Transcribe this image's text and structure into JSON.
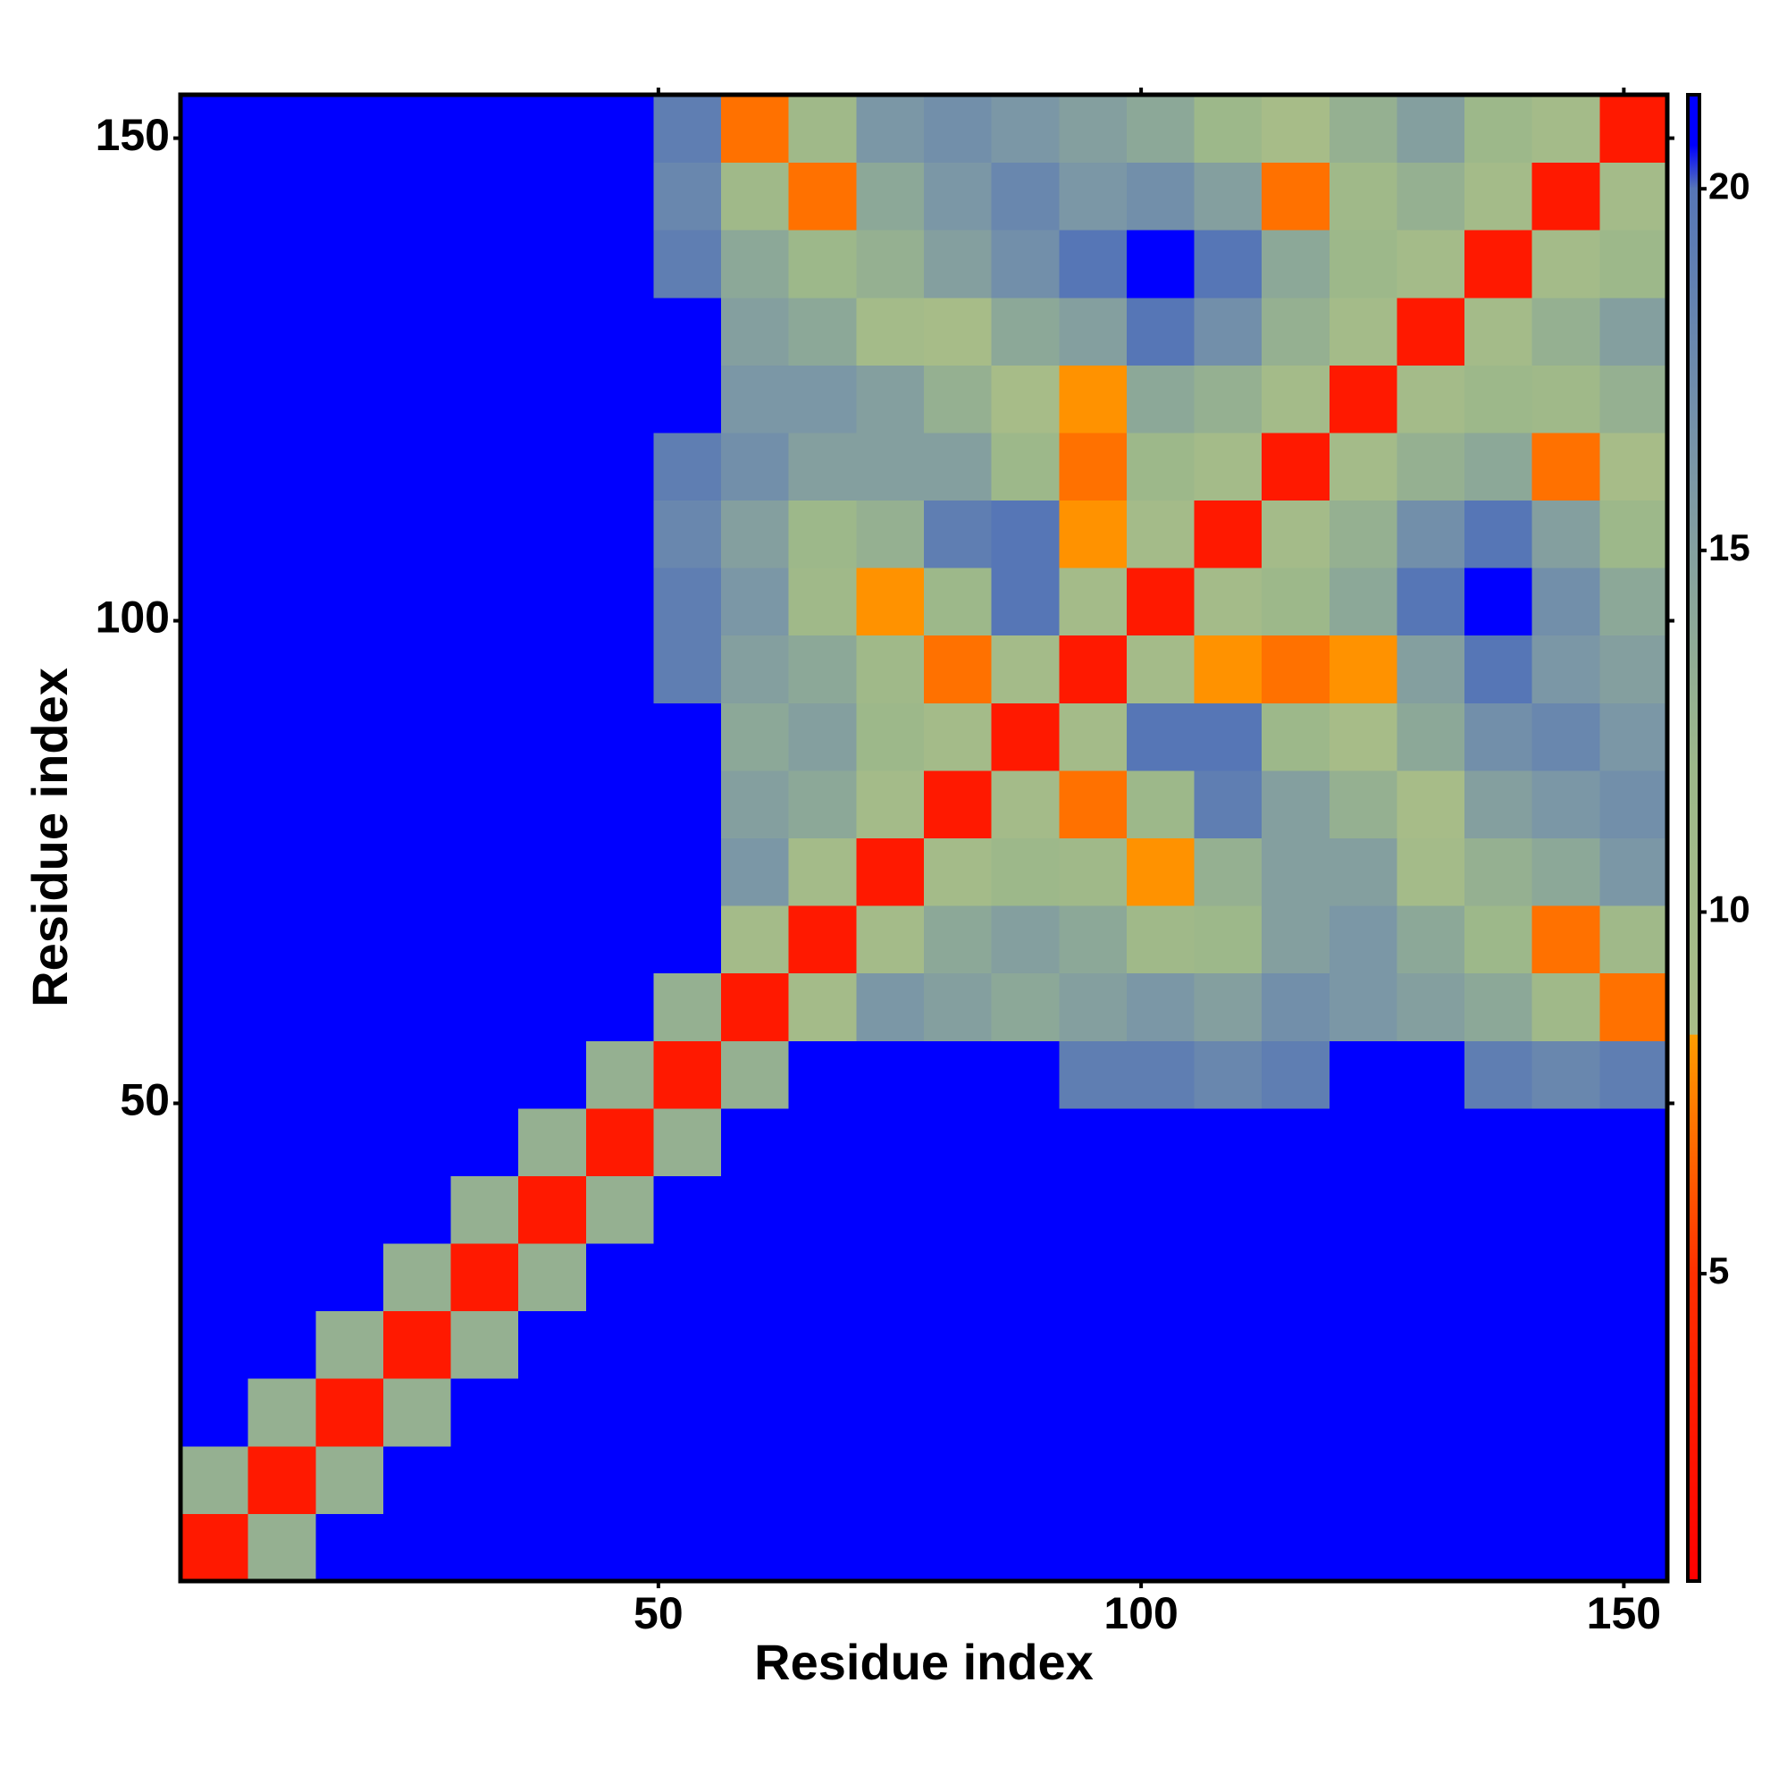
{
  "chart_data": {
    "type": "heatmap",
    "xlabel": "Residue index",
    "ylabel": "Residue index",
    "xlim": [
      0.5,
      154.5
    ],
    "ylim": [
      0.5,
      154.5
    ],
    "xticks": [
      50,
      100,
      150
    ],
    "yticks": [
      50,
      100,
      150
    ],
    "values": [
      [
        3,
        13,
        21,
        21,
        21,
        21,
        21,
        21,
        21,
        21,
        21,
        21,
        21,
        21,
        21,
        21,
        21,
        21,
        21,
        21,
        21,
        21
      ],
      [
        13,
        3,
        13,
        21,
        21,
        21,
        21,
        21,
        21,
        21,
        21,
        21,
        21,
        21,
        21,
        21,
        21,
        21,
        21,
        21,
        21,
        21
      ],
      [
        21,
        13,
        3,
        13,
        21,
        21,
        21,
        21,
        21,
        21,
        21,
        21,
        21,
        21,
        21,
        21,
        21,
        21,
        21,
        21,
        21,
        21
      ],
      [
        21,
        21,
        13,
        3,
        13,
        21,
        21,
        21,
        21,
        21,
        21,
        21,
        21,
        21,
        21,
        21,
        21,
        21,
        21,
        21,
        21,
        21
      ],
      [
        21,
        21,
        21,
        13,
        3,
        13,
        21,
        21,
        21,
        21,
        21,
        21,
        21,
        21,
        21,
        21,
        21,
        21,
        21,
        21,
        21,
        21
      ],
      [
        21,
        21,
        21,
        21,
        13,
        3,
        13,
        21,
        21,
        21,
        21,
        21,
        21,
        21,
        21,
        21,
        21,
        21,
        21,
        21,
        21,
        21
      ],
      [
        21,
        21,
        21,
        21,
        21,
        13,
        3,
        13,
        21,
        21,
        21,
        21,
        21,
        21,
        21,
        21,
        21,
        21,
        21,
        21,
        21,
        21
      ],
      [
        21,
        21,
        21,
        21,
        21,
        21,
        13,
        3,
        13,
        21,
        21,
        21,
        21,
        19,
        19,
        18,
        19,
        21,
        21,
        19,
        18,
        19
      ],
      [
        21,
        21,
        21,
        21,
        21,
        21,
        21,
        13,
        3,
        10,
        16,
        15,
        14,
        15,
        16,
        15,
        17,
        16,
        15,
        14,
        11,
        7
      ],
      [
        21,
        21,
        21,
        21,
        21,
        21,
        21,
        21,
        10,
        3,
        10,
        14,
        15,
        14,
        11,
        12,
        15,
        16,
        14,
        12,
        7,
        11
      ],
      [
        21,
        21,
        21,
        21,
        21,
        21,
        21,
        21,
        16,
        10,
        3,
        10,
        12,
        11,
        8,
        13,
        15,
        15,
        10,
        13,
        14,
        16
      ],
      [
        21,
        21,
        21,
        21,
        21,
        21,
        21,
        21,
        15,
        14,
        10,
        3,
        10,
        7,
        12,
        19,
        15,
        13,
        9,
        15,
        16,
        17
      ],
      [
        21,
        21,
        21,
        21,
        21,
        21,
        21,
        21,
        14,
        15,
        12,
        10,
        3,
        10,
        20,
        20,
        12,
        9,
        14,
        17,
        18,
        16
      ],
      [
        21,
        21,
        21,
        21,
        21,
        21,
        21,
        19,
        15,
        14,
        11,
        7,
        10,
        3,
        10,
        8,
        7,
        8,
        15,
        20,
        16,
        15
      ],
      [
        21,
        21,
        21,
        21,
        21,
        21,
        21,
        19,
        16,
        11,
        8,
        12,
        20,
        10,
        3,
        10,
        12,
        14,
        20,
        21,
        17,
        14
      ],
      [
        21,
        21,
        21,
        21,
        21,
        21,
        21,
        18,
        15,
        12,
        13,
        19,
        20,
        8,
        10,
        3,
        10,
        13,
        17,
        20,
        15,
        12
      ],
      [
        21,
        21,
        21,
        21,
        21,
        21,
        21,
        19,
        17,
        15,
        15,
        15,
        12,
        7,
        12,
        10,
        3,
        10,
        13,
        14,
        7,
        9
      ],
      [
        21,
        21,
        21,
        21,
        21,
        21,
        21,
        21,
        16,
        16,
        15,
        13,
        9,
        8,
        14,
        13,
        10,
        3,
        10,
        12,
        11,
        13
      ],
      [
        21,
        21,
        21,
        21,
        21,
        21,
        21,
        21,
        15,
        14,
        10,
        9,
        14,
        15,
        20,
        17,
        13,
        10,
        3,
        10,
        13,
        15
      ],
      [
        21,
        21,
        21,
        21,
        21,
        21,
        21,
        19,
        14,
        12,
        13,
        15,
        17,
        20,
        21,
        20,
        14,
        12,
        10,
        3,
        10,
        12
      ],
      [
        21,
        21,
        21,
        21,
        21,
        21,
        21,
        18,
        11,
        7,
        14,
        16,
        18,
        16,
        17,
        15,
        7,
        11,
        13,
        10,
        3,
        10
      ],
      [
        21,
        21,
        21,
        21,
        21,
        21,
        21,
        19,
        7,
        11,
        16,
        17,
        16,
        15,
        14,
        12,
        9,
        13,
        15,
        12,
        10,
        3
      ]
    ],
    "clim": [
      0.75,
      21.3
    ],
    "cticks": [
      5,
      10,
      15,
      20
    ],
    "colorscale": [
      [
        0.75,
        "#ff0000"
      ],
      [
        5,
        "#ff3000"
      ],
      [
        8.3,
        "#ff9c00"
      ],
      [
        8.31,
        "#a9bd88"
      ],
      [
        12,
        "#9db88a"
      ],
      [
        16,
        "#7b97a6"
      ],
      [
        20,
        "#5676b6"
      ],
      [
        20.6,
        "#0000ff"
      ],
      [
        21.3,
        "#0000ff"
      ]
    ]
  }
}
